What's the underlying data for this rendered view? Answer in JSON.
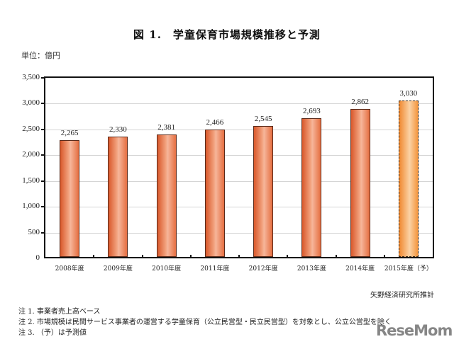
{
  "chart_data": {
    "type": "bar",
    "title": "図 1.　学童保育市場規模推移と予測",
    "unit_label": "単位：億円",
    "xlabel": "",
    "ylabel": "億円",
    "ylim": [
      0,
      3500
    ],
    "yticks": [
      "0",
      "500",
      "1,000",
      "1,500",
      "2,000",
      "2,500",
      "3,000",
      "3,500"
    ],
    "ytick_values": [
      0,
      500,
      1000,
      1500,
      2000,
      2500,
      3000,
      3500
    ],
    "grid": true,
    "legend": "none",
    "categories": [
      "2008年度",
      "2009年度",
      "2010年度",
      "2011年度",
      "2012年度",
      "2013年度",
      "2014年度",
      "2015年度（予）"
    ],
    "values": [
      2265,
      2330,
      2381,
      2466,
      2545,
      2693,
      2862,
      3030
    ],
    "value_labels": [
      "2,265",
      "2,330",
      "2,381",
      "2,466",
      "2,545",
      "2,693",
      "2,862",
      "3,030"
    ],
    "forecast_flags": [
      false,
      false,
      false,
      false,
      false,
      false,
      false,
      true
    ],
    "colors": {
      "actual": "#e8693a",
      "forecast": "#f4a04a"
    }
  },
  "source": "矢野経済研究所推計",
  "notes": [
    "注 1.  事業者売上高ベース",
    "注 2.  市場規模は民間サービス事業者の運営する学童保育（公立民営型・民立民営型）を対象とし、公立公営型を除く",
    "注 3.  （予）は予測値"
  ],
  "watermark": "ReseMom"
}
